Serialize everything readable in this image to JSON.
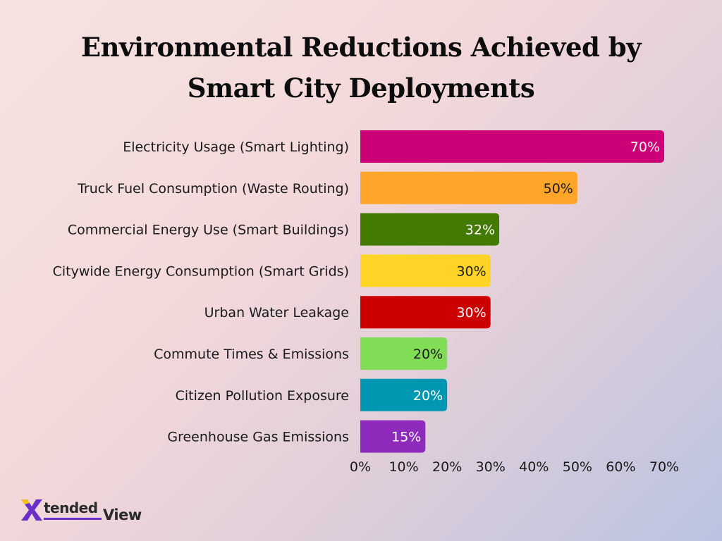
{
  "chart_data": {
    "type": "bar",
    "orientation": "horizontal",
    "title_lines": [
      "Environmental Reductions Achieved by",
      "Smart City Deployments"
    ],
    "categories": [
      "Electricity Usage (Smart Lighting)",
      "Truck Fuel Consumption (Waste Routing)",
      "Commercial Energy Use (Smart Buildings)",
      "Citywide Energy Consumption (Smart Grids)",
      "Urban Water Leakage",
      "Commute Times & Emissions",
      "Citizen Pollution Exposure",
      "Greenhouse Gas Emissions"
    ],
    "values": [
      70,
      50,
      32,
      30,
      30,
      20,
      20,
      15
    ],
    "value_labels": [
      "70%",
      "50%",
      "32%",
      "30%",
      "30%",
      "20%",
      "20%",
      "15%"
    ],
    "colors": [
      "#cc0077",
      "#ffa52a",
      "#437a00",
      "#ffd427",
      "#cc0000",
      "#80dd55",
      "#0097b2",
      "#8e2bbd"
    ],
    "value_label_colors": [
      "#ffffff",
      "#1a1a1a",
      "#ffffff",
      "#1a1a1a",
      "#ffffff",
      "#1a1a1a",
      "#ffffff",
      "#ffffff"
    ],
    "xticks": [
      "0%",
      "10%",
      "20%",
      "30%",
      "40%",
      "50%",
      "60%",
      "70%"
    ],
    "xlim": [
      0,
      70
    ],
    "grid": false,
    "legend": false
  },
  "brand": {
    "logo_text_1": "tended",
    "logo_text_2": "View",
    "logo_text_x": "X"
  }
}
